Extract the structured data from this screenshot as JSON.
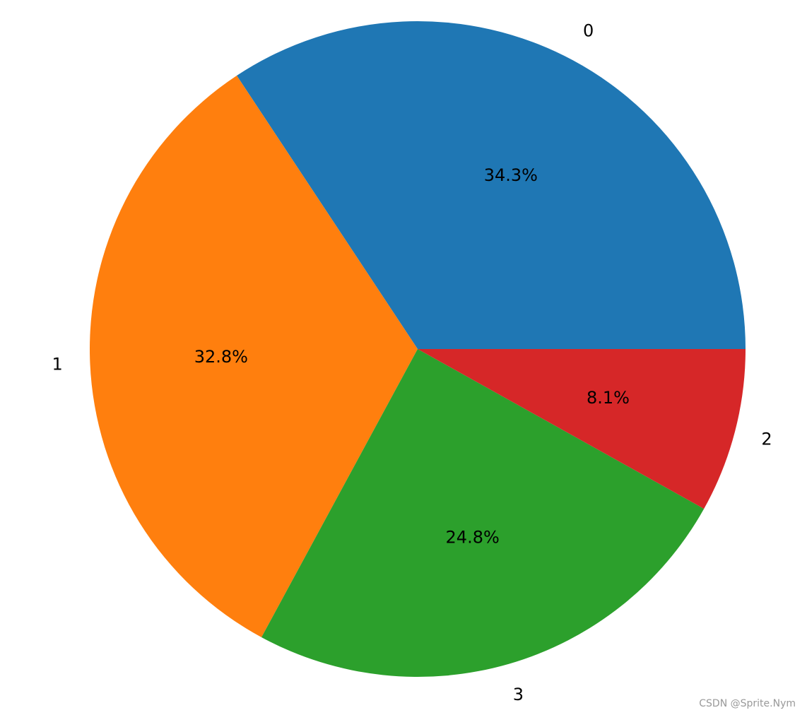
{
  "chart_data": {
    "type": "pie",
    "categories": [
      "0",
      "1",
      "3",
      "2"
    ],
    "values": [
      34.3,
      32.8,
      24.8,
      8.1
    ],
    "value_labels": [
      "34.3%",
      "32.8%",
      "24.8%",
      "8.1%"
    ],
    "colors": [
      "#1f77b4",
      "#ff7f0e",
      "#2ca02c",
      "#d62728"
    ]
  },
  "watermark": "CSDN @Sprite.Nym"
}
